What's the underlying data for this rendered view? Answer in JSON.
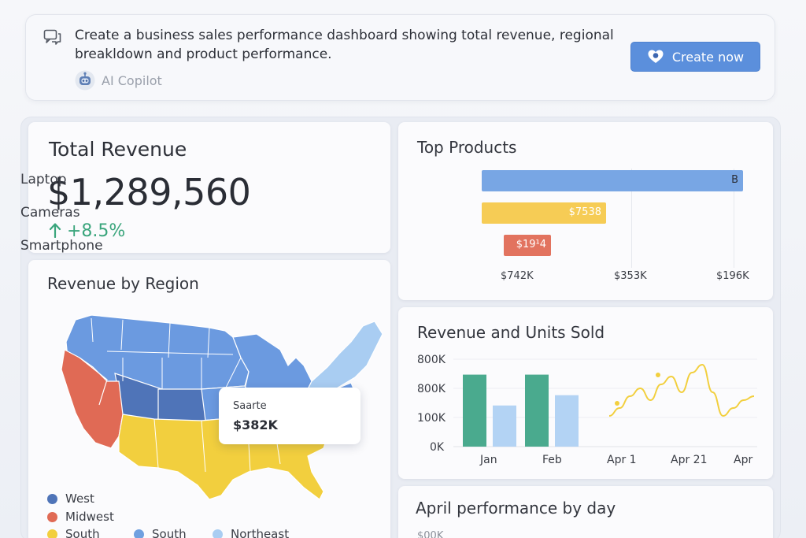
{
  "prompt": {
    "text": "Create a business sales performance dashboard showing total revenue, regional breakldown and product performance.",
    "assistant_name": "AI Copilot",
    "create_button_label": "Create now"
  },
  "total_revenue": {
    "title": "Total Revenue",
    "value": "$1,289,560",
    "change": "+8.5%",
    "change_icon": "arrow-up-icon"
  },
  "region": {
    "title": "Revenue by Region",
    "tooltip": {
      "label": "Saarte",
      "value": "$382K"
    },
    "legend": [
      {
        "name": "West",
        "color": "#4f74b8"
      },
      {
        "name": "Midwest",
        "color": "#e06a55"
      },
      {
        "name": "South",
        "color": "#f2cf3e"
      },
      {
        "name": "South",
        "color": "#6fa0e0"
      },
      {
        "name": "Northeast",
        "color": "#a9cdf2"
      }
    ]
  },
  "top_products": {
    "title": "Top Products",
    "items": [
      {
        "label": "Laptop",
        "value_label": "B",
        "color": "#78a6e4"
      },
      {
        "label": "Cameras",
        "value_label": "$7538",
        "color": "#f6cc55"
      },
      {
        "label": "Smartphone",
        "value_label": "$19¹4",
        "color": "#e2735f"
      }
    ],
    "axis_labels": [
      "$742K",
      "$353K",
      "$196K"
    ]
  },
  "units": {
    "title": "Revenue and Units Sold",
    "y_ticks": [
      "800K",
      "800K",
      "100K",
      "0K"
    ],
    "bar_x_labels": [
      "Jan",
      "Feb"
    ],
    "line_x_labels": [
      "Apr 1",
      "Apr 21",
      "Apr"
    ],
    "colors": {
      "bar_dark": "#4aaa8e",
      "bar_light": "#b3d3f4",
      "line": "#f2cf3e"
    }
  },
  "april": {
    "title": "April performance by day",
    "y_tick": "$00K"
  },
  "chart_data": [
    {
      "type": "bar",
      "title": "Top Products",
      "categories": [
        "Laptop",
        "Cameras",
        "Smartphone"
      ],
      "values": [
        742,
        353,
        196
      ],
      "data_labels": [
        "B",
        "$7538",
        "$19¹4"
      ],
      "xlabel": "",
      "ylabel": "",
      "orientation": "horizontal"
    },
    {
      "type": "bar",
      "title": "Revenue and Units Sold",
      "categories": [
        "Jan",
        "Feb"
      ],
      "series": [
        {
          "values": [
            700,
            700
          ]
        },
        {
          "values": [
            400,
            500
          ]
        }
      ],
      "y_tick_labels": [
        "800K",
        "800K",
        "100K",
        "0K"
      ]
    },
    {
      "type": "line",
      "x_tick_labels": [
        "Apr 1",
        "Apr 21",
        "Apr"
      ],
      "series": [
        {
          "values": [
            30,
            40,
            55,
            65,
            50,
            70,
            80,
            60,
            85,
            95,
            60,
            30,
            40,
            50,
            55
          ]
        }
      ]
    }
  ]
}
